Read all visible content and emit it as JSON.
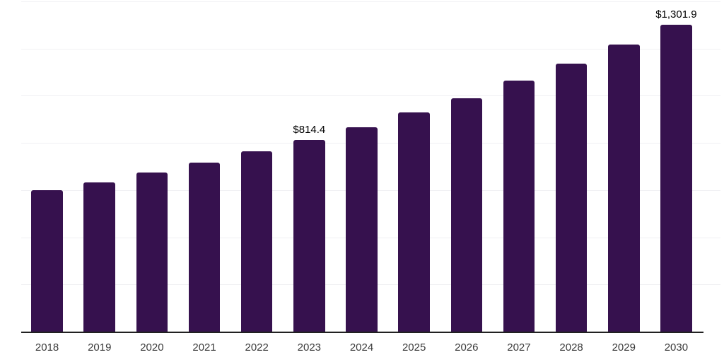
{
  "chart_data": {
    "type": "bar",
    "title": "",
    "xlabel": "",
    "ylabel": "",
    "categories": [
      "2018",
      "2019",
      "2020",
      "2021",
      "2022",
      "2023",
      "2024",
      "2025",
      "2026",
      "2027",
      "2028",
      "2029",
      "2030"
    ],
    "values": [
      600,
      633,
      675,
      718,
      767,
      814.4,
      869,
      931,
      992,
      1065,
      1138,
      1219,
      1301.9
    ],
    "data_labels": [
      "",
      "",
      "",
      "",
      "",
      "$814.4",
      "",
      "",
      "",
      "",
      "",
      "",
      "$1,301.9"
    ],
    "ylim": [
      0,
      1400
    ],
    "gridline_step": 200,
    "grid": "horizontal",
    "y_axis_tick_labels_visible": false,
    "legend_position": "none",
    "colors": {
      "bar": "#36114E",
      "axis_line": "#212121",
      "gridline": "#f0f0f3",
      "tick_label": "#3a3a3a",
      "data_label": "#000000",
      "background": "#ffffff"
    }
  }
}
